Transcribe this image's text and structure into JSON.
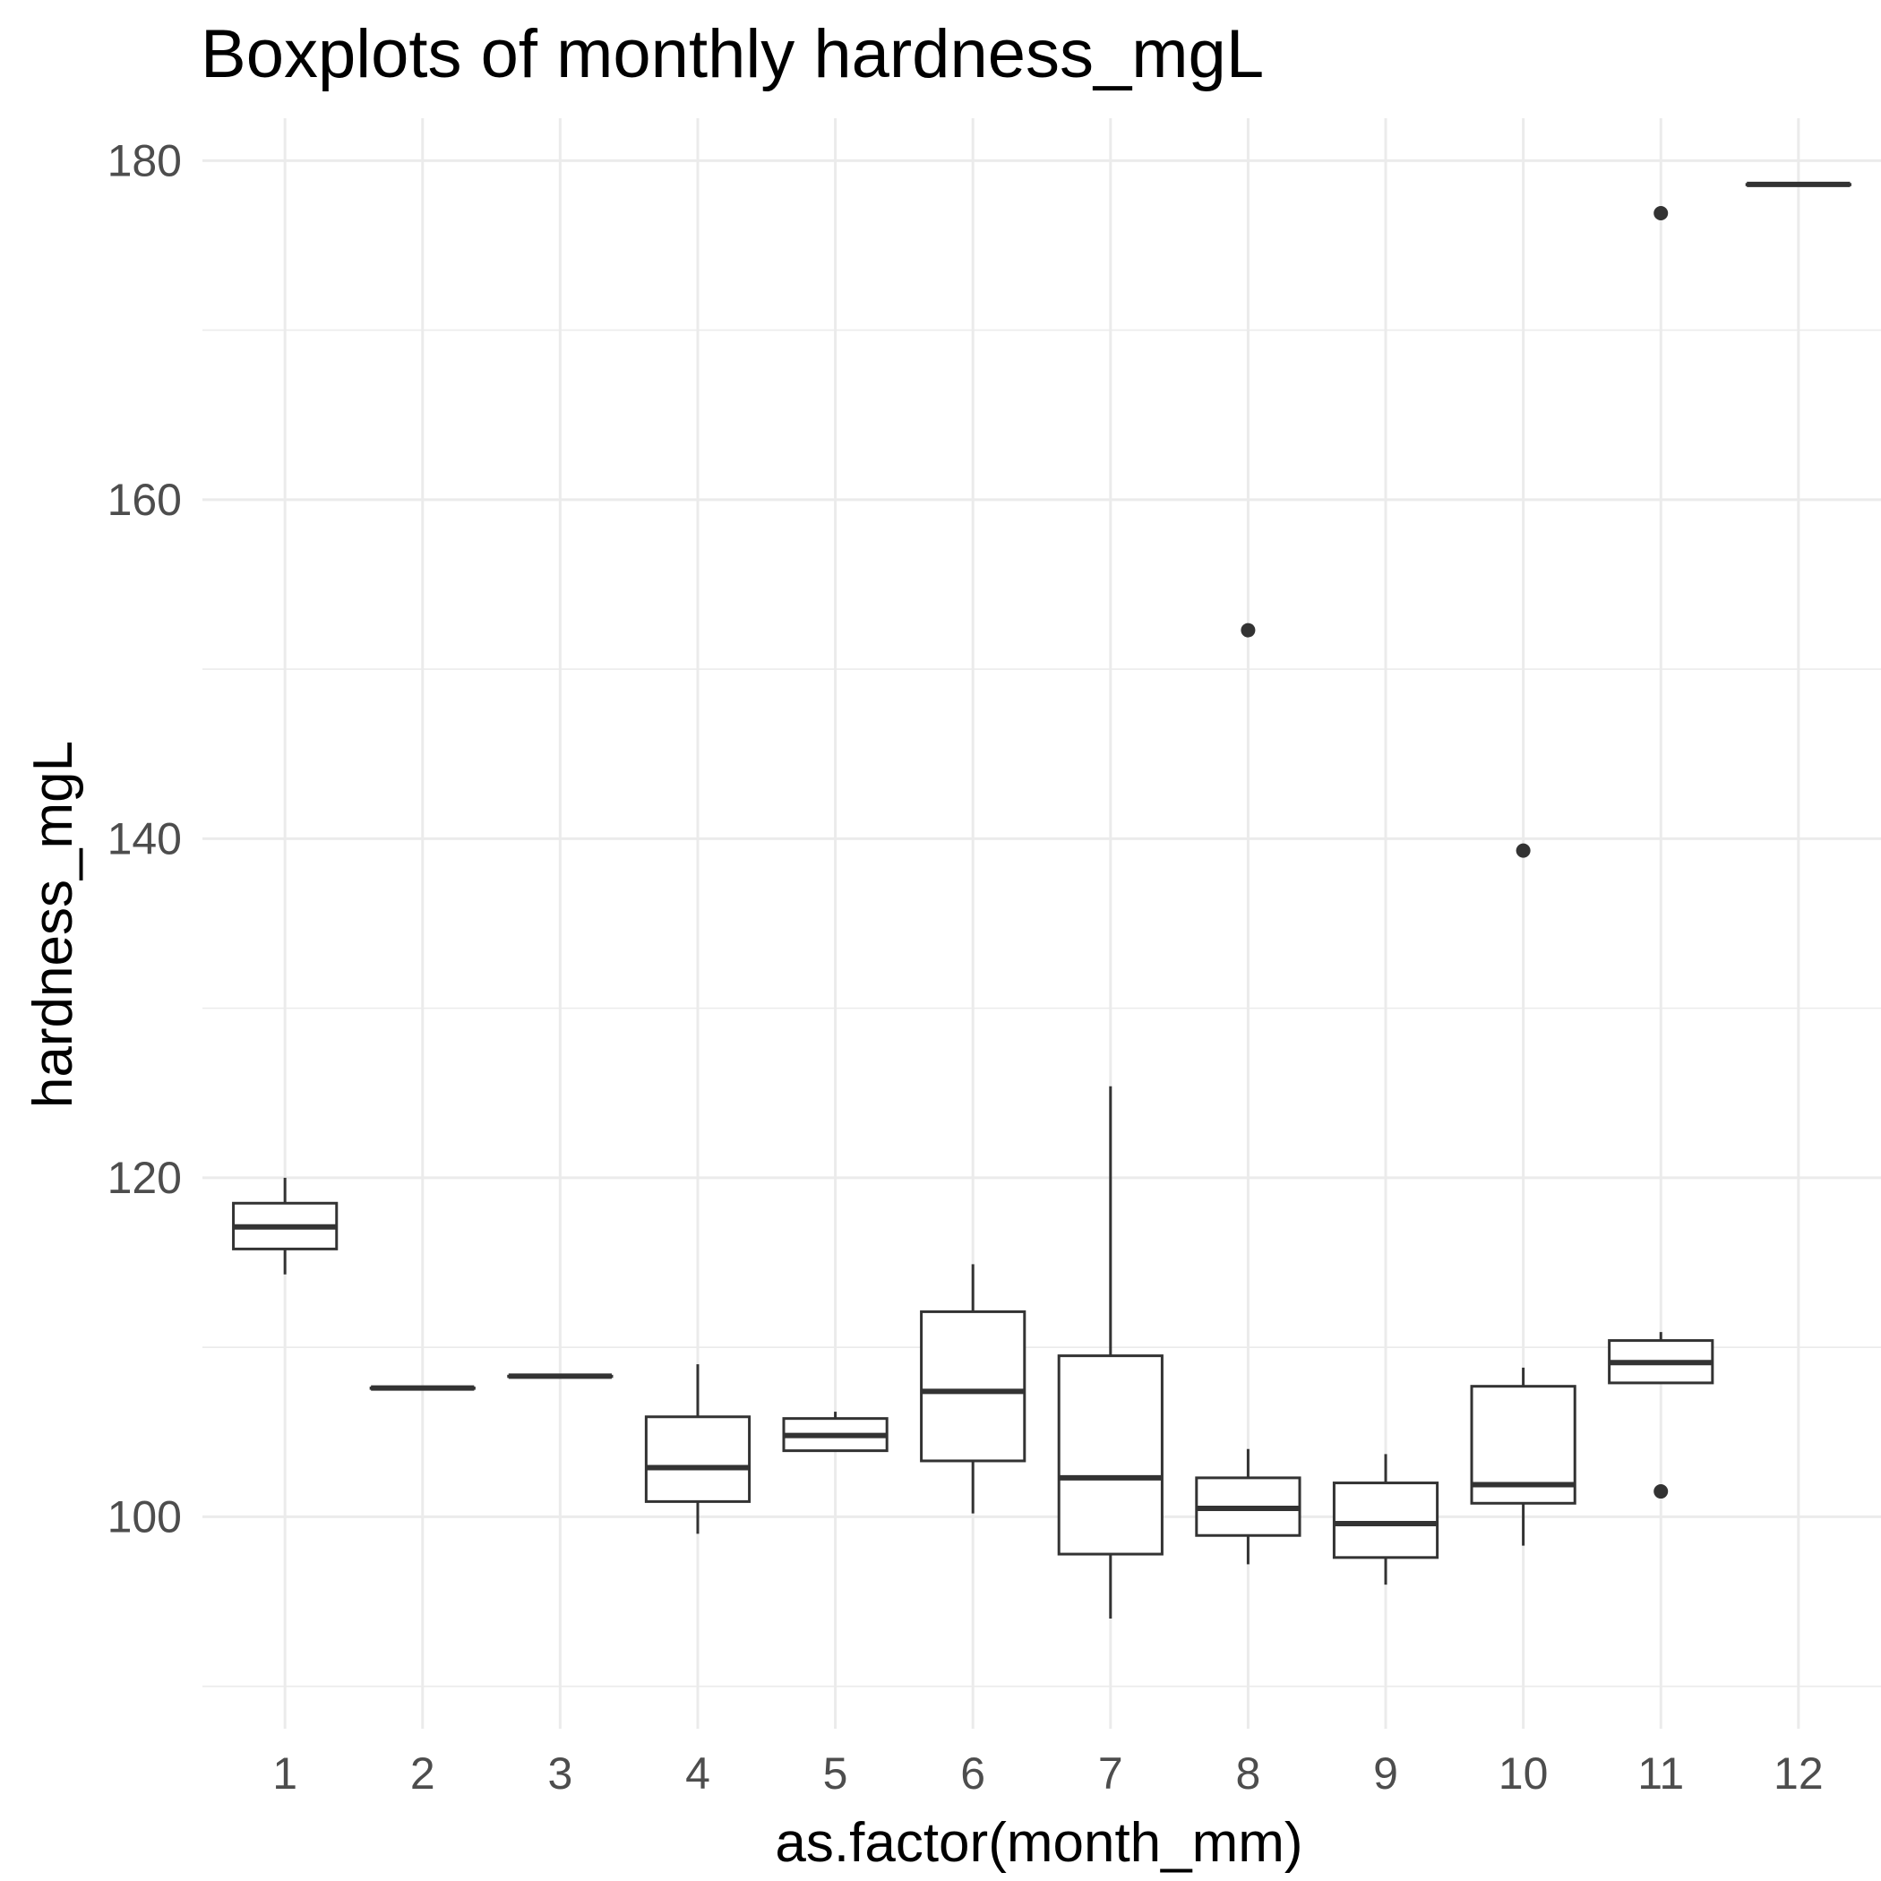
{
  "chart_data": {
    "type": "boxplot",
    "title": "Boxplots of monthly hardness_mgL",
    "xlabel": "as.factor(month_mm)",
    "ylabel": "hardness_mgL",
    "ylim": [
      87.5,
      182.5
    ],
    "y_ticks": [
      100,
      120,
      140,
      160,
      180
    ],
    "grid": true,
    "categories": [
      "1",
      "2",
      "3",
      "4",
      "5",
      "6",
      "7",
      "8",
      "9",
      "10",
      "11",
      "12"
    ],
    "boxes": [
      {
        "category": "1",
        "min": 114.3,
        "q1": 115.8,
        "median": 117.1,
        "q3": 118.5,
        "max": 120.0,
        "outliers": []
      },
      {
        "category": "2",
        "min": 107.6,
        "q1": 107.6,
        "median": 107.6,
        "q3": 107.6,
        "max": 107.6,
        "outliers": []
      },
      {
        "category": "3",
        "min": 108.3,
        "q1": 108.3,
        "median": 108.3,
        "q3": 108.3,
        "max": 108.3,
        "outliers": []
      },
      {
        "category": "4",
        "min": 99.0,
        "q1": 100.9,
        "median": 102.9,
        "q3": 105.9,
        "max": 109.0,
        "outliers": []
      },
      {
        "category": "5",
        "min": 103.9,
        "q1": 103.9,
        "median": 104.8,
        "q3": 105.8,
        "max": 106.2,
        "outliers": []
      },
      {
        "category": "6",
        "min": 100.2,
        "q1": 103.3,
        "median": 107.4,
        "q3": 112.1,
        "max": 114.9,
        "outliers": []
      },
      {
        "category": "7",
        "min": 94.0,
        "q1": 97.8,
        "median": 102.3,
        "q3": 109.5,
        "max": 125.4,
        "outliers": []
      },
      {
        "category": "8",
        "min": 97.2,
        "q1": 98.9,
        "median": 100.5,
        "q3": 102.3,
        "max": 104.0,
        "outliers": [
          152.3
        ]
      },
      {
        "category": "9",
        "min": 96.0,
        "q1": 97.6,
        "median": 99.6,
        "q3": 102.0,
        "max": 103.7,
        "outliers": []
      },
      {
        "category": "10",
        "min": 98.3,
        "q1": 100.8,
        "median": 101.9,
        "q3": 107.7,
        "max": 108.8,
        "outliers": [
          139.3
        ]
      },
      {
        "category": "11",
        "min": 107.9,
        "q1": 107.9,
        "median": 109.1,
        "q3": 110.4,
        "max": 110.9,
        "outliers": [
          176.9,
          101.5
        ]
      },
      {
        "category": "12",
        "min": 178.6,
        "q1": 178.6,
        "median": 178.6,
        "q3": 178.6,
        "max": 178.6,
        "outliers": []
      }
    ]
  }
}
